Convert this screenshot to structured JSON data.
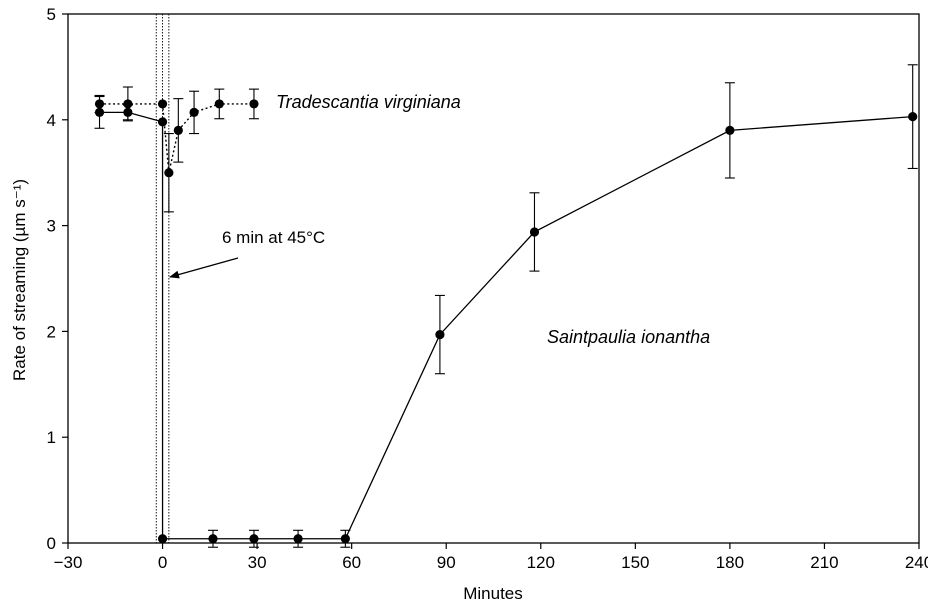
{
  "chart_data": {
    "type": "line",
    "xlabel": "Minutes",
    "ylabel": "Rate of streaming (µm s⁻¹)",
    "xlim": [
      -30,
      240
    ],
    "ylim": [
      0,
      5
    ],
    "xticks": [
      -30,
      0,
      30,
      60,
      90,
      120,
      150,
      180,
      210,
      240
    ],
    "yticks": [
      0,
      1,
      2,
      3,
      4,
      5
    ],
    "xtick_labels": [
      "−30",
      "0",
      "30",
      "60",
      "90",
      "120",
      "150",
      "180",
      "210",
      "240"
    ],
    "ytick_labels": [
      "0",
      "1",
      "2",
      "3",
      "4",
      "5"
    ],
    "grid": false,
    "series": [
      {
        "name": "Tradescantia virginiana",
        "line_style": "dotted",
        "points": [
          {
            "x": -20,
            "y": 4.15,
            "err": 0.08
          },
          {
            "x": -11,
            "y": 4.15,
            "err": 0.16
          },
          {
            "x": 0,
            "y": 4.15,
            "err": 0
          },
          {
            "x": 2,
            "y": 3.5,
            "err": 0.37
          },
          {
            "x": 5,
            "y": 3.9,
            "err": 0.3
          },
          {
            "x": 10,
            "y": 4.07,
            "err": 0.2
          },
          {
            "x": 18,
            "y": 4.15,
            "err": 0.14
          },
          {
            "x": 29,
            "y": 4.15,
            "err": 0.14
          }
        ]
      },
      {
        "name": "Saintpaulia ionantha",
        "line_style": "solid",
        "points": [
          {
            "x": -20,
            "y": 4.07,
            "err": 0.15
          },
          {
            "x": -11,
            "y": 4.07,
            "err": 0.07
          },
          {
            "x": 0,
            "y": 3.98,
            "err": 0
          },
          {
            "x": 0,
            "y": 0.04,
            "err": 0
          },
          {
            "x": 16,
            "y": 0.04,
            "err": 0.08
          },
          {
            "x": 29,
            "y": 0.04,
            "err": 0.08
          },
          {
            "x": 43,
            "y": 0.04,
            "err": 0.08
          },
          {
            "x": 58,
            "y": 0.04,
            "err": 0.08
          },
          {
            "x": 88,
            "y": 1.97,
            "err": 0.37
          },
          {
            "x": 118,
            "y": 2.94,
            "err": 0.37
          },
          {
            "x": 180,
            "y": 3.9,
            "err": 0.45
          },
          {
            "x": 238,
            "y": 4.03,
            "err": 0.49
          }
        ]
      }
    ],
    "annotations": [
      {
        "text": "6 min at 45°C",
        "arrow": true,
        "arrow_target": {
          "x": 3,
          "y": 2.5
        }
      }
    ],
    "treatment_lines": [
      -2,
      0,
      2
    ]
  }
}
